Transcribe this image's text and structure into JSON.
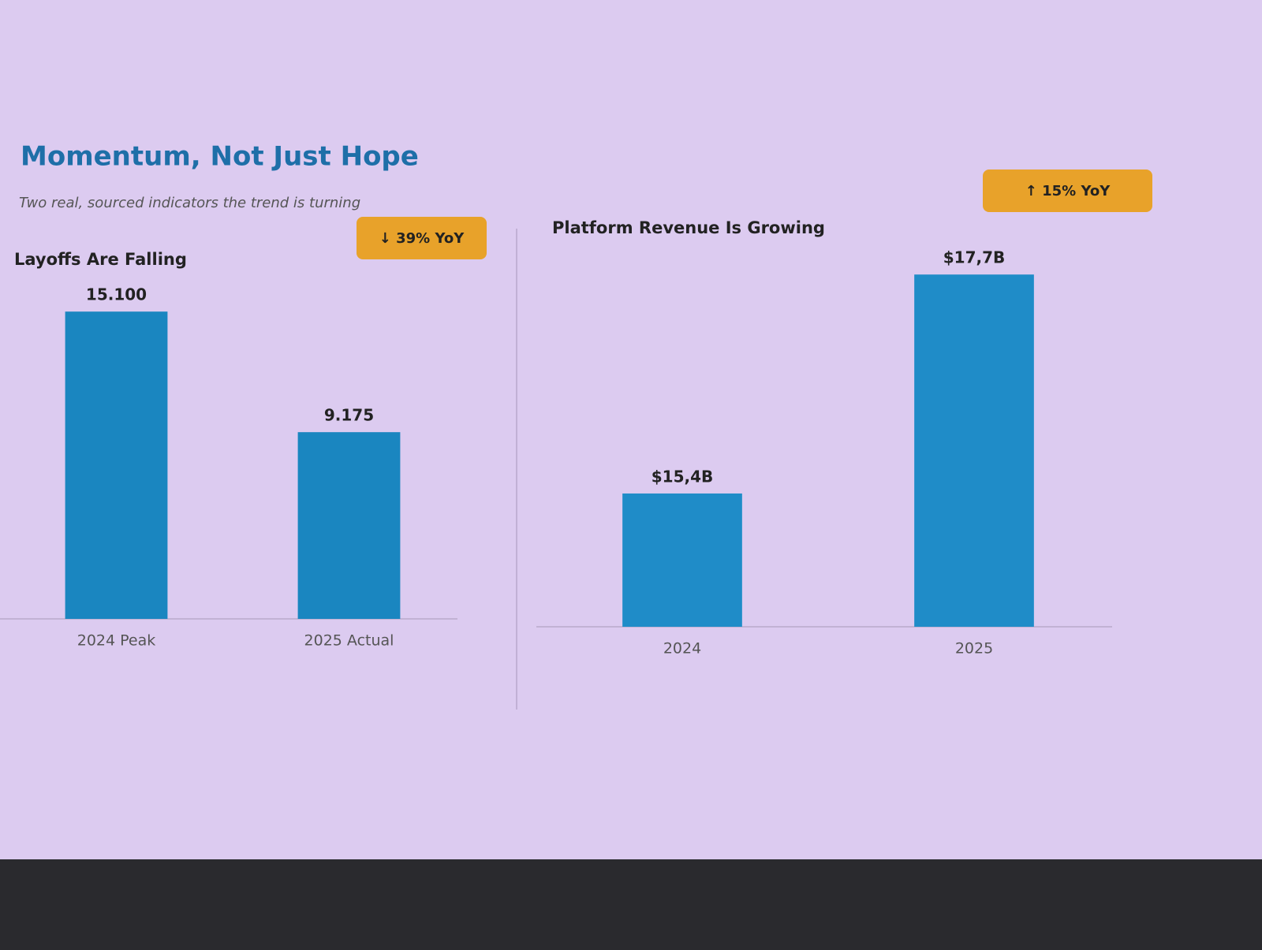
{
  "title": "Momentum, Not Just Hope",
  "subtitle": "Two real, sourced indicators the trend is turning",
  "chart_data": [
    {
      "type": "bar",
      "title": "Layoffs Are Falling",
      "annotation": "↓ 39% YoY",
      "categories": [
        "2024 Peak",
        "2025 Actual"
      ],
      "values": [
        15100,
        9175
      ],
      "value_labels": [
        "15.100",
        "9.175"
      ],
      "ylim": [
        0,
        16000
      ],
      "color": "#1a86c0"
    },
    {
      "type": "bar",
      "title": "Platform Revenue Is Growing",
      "annotation": "↑ 15% YoY",
      "categories": [
        "2024",
        "2025"
      ],
      "values": [
        15.4,
        17.7
      ],
      "value_labels": [
        "$15,4B",
        "$17,7B"
      ],
      "ylim": [
        14,
        18
      ],
      "color": "#1f8cc8"
    }
  ]
}
